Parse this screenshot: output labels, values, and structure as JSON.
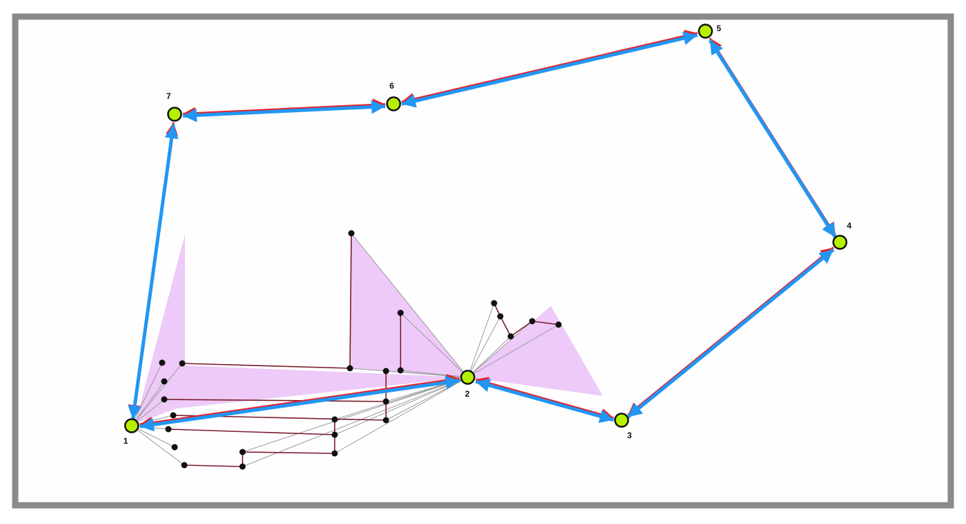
{
  "nodes": [
    {
      "label": "1"
    },
    {
      "label": "2"
    },
    {
      "label": "3"
    },
    {
      "label": "4"
    },
    {
      "label": "5"
    },
    {
      "label": "6"
    },
    {
      "label": "7"
    }
  ]
}
